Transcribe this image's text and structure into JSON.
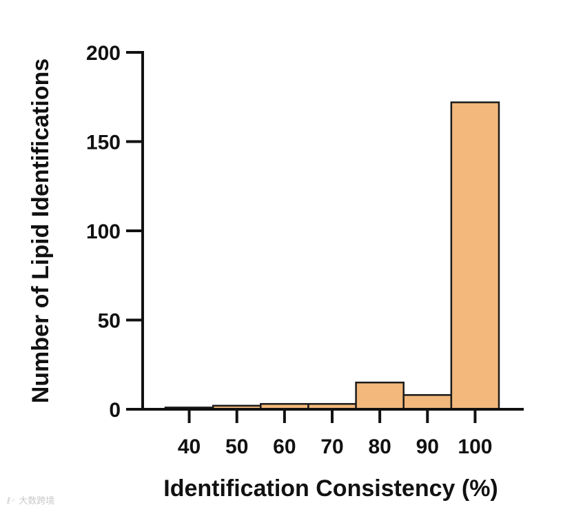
{
  "chart_data": {
    "type": "bar",
    "categories": [
      "40",
      "50",
      "60",
      "70",
      "80",
      "90",
      "100"
    ],
    "values": [
      1,
      2,
      3,
      3,
      15,
      8,
      172
    ],
    "xlabel": "Identification Consistency (%)",
    "ylabel": "Number of Lipid Identifications",
    "ylim": [
      0,
      200
    ],
    "yticks": [
      "0",
      "50",
      "100",
      "150",
      "200"
    ],
    "grid": false,
    "legend": "none",
    "colors": {
      "bar_fill": "#f2b87c",
      "bar_stroke": "#1a1a1a",
      "axis": "#111111"
    }
  },
  "watermark": {
    "text": "大数跨境"
  }
}
